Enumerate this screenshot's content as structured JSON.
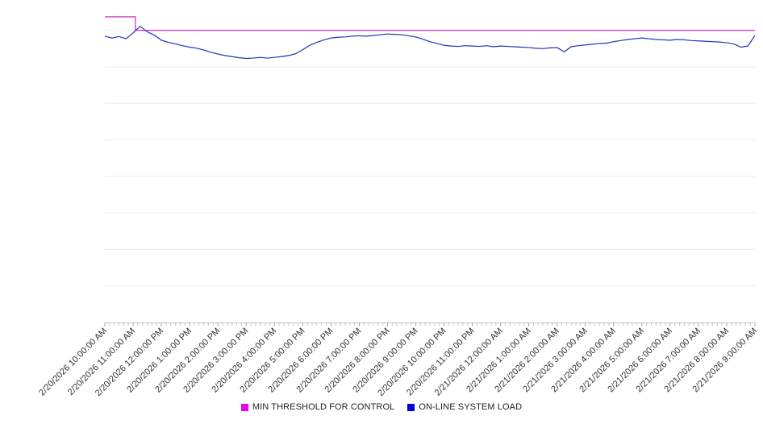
{
  "chart_data": {
    "type": "line",
    "title": "",
    "xlabel": "",
    "ylabel": "",
    "note": "y-axis is unlabeled in the source image; values estimated from gridlines (baseline = 0, one gridline = 10 units, threshold sits on top gridline = 80)",
    "ylim": [
      0,
      85
    ],
    "gridline_values": [
      10,
      20,
      30,
      40,
      50,
      60,
      70,
      80
    ],
    "grid": "horizontal-only",
    "legend_position": "bottom-center",
    "x_tick_interval_minutes": 60,
    "minor_tick_interval_minutes": 10,
    "categories": [
      "2/20/2026 10:00:00 AM",
      "2/20/2026 11:00:00 AM",
      "2/20/2026 12:00:00 PM",
      "2/20/2026 1:00:00 PM",
      "2/20/2026 2:00:00 PM",
      "2/20/2026 3:00:00 PM",
      "2/20/2026 4:00:00 PM",
      "2/20/2026 5:00:00 PM",
      "2/20/2026 6:00:00 PM",
      "2/20/2026 7:00:00 PM",
      "2/20/2026 8:00:00 PM",
      "2/20/2026 9:00:00 PM",
      "2/20/2026 10:00:00 PM",
      "2/20/2026 11:00:00 PM",
      "2/21/2026 12:00:00 AM",
      "2/21/2026 1:00:00 AM",
      "2/21/2026 2:00:00 AM",
      "2/21/2026 3:00:00 AM",
      "2/21/2026 4:00:00 AM",
      "2/21/2026 5:00:00 AM",
      "2/21/2026 6:00:00 AM",
      "2/21/2026 7:00:00 AM",
      "2/21/2026 8:00:00 AM",
      "2/21/2026 9:00:00 AM"
    ],
    "colors": {
      "gridline": "#ebebeb",
      "axis": "#c8c8c8",
      "tick_minor": "#c4c4c4",
      "tick_major": "#a8a8a8",
      "label": "#333333"
    },
    "series": [
      {
        "name": "MIN THRESHOLD FOR CONTROL",
        "type": "step-line",
        "color": "#cc33cc",
        "swatch_color": "#ee00ee",
        "points": [
          {
            "x_hours": 0,
            "y": 83.7
          },
          {
            "x_hours": 1.08,
            "y": 83.7
          },
          {
            "x_hours": 1.08,
            "y": 80.0
          },
          {
            "x_hours": 23,
            "y": 80.0
          }
        ]
      },
      {
        "name": "ON-LINE SYSTEM LOAD",
        "type": "line",
        "color": "#2233bb",
        "swatch_color": "#0000dd",
        "x_start_hours": 0,
        "sample_interval_minutes": 15,
        "values": [
          78.4,
          77.9,
          78.3,
          77.7,
          79.3,
          81.1,
          79.6,
          78.7,
          77.3,
          76.7,
          76.3,
          75.8,
          75.4,
          75.1,
          74.6,
          74.0,
          73.5,
          73.1,
          72.8,
          72.5,
          72.3,
          72.4,
          72.6,
          72.4,
          72.6,
          72.8,
          73.1,
          73.6,
          74.7,
          75.9,
          76.7,
          77.4,
          77.9,
          78.1,
          78.2,
          78.4,
          78.5,
          78.4,
          78.6,
          78.8,
          79.0,
          78.9,
          78.8,
          78.5,
          78.2,
          77.6,
          76.9,
          76.4,
          75.9,
          75.7,
          75.6,
          75.8,
          75.7,
          75.6,
          75.8,
          75.5,
          75.7,
          75.6,
          75.5,
          75.4,
          75.3,
          75.1,
          75.0,
          75.2,
          75.3,
          74.1,
          75.5,
          75.8,
          76.0,
          76.2,
          76.4,
          76.5,
          76.9,
          77.2,
          77.5,
          77.7,
          77.9,
          77.7,
          77.5,
          77.4,
          77.3,
          77.5,
          77.4,
          77.2,
          77.1,
          77.0,
          76.9,
          76.8,
          76.6,
          76.3,
          75.4,
          75.7,
          78.6
        ]
      }
    ]
  },
  "legend": {
    "items": [
      {
        "label": "MIN THRESHOLD FOR CONTROL"
      },
      {
        "label": "ON-LINE SYSTEM LOAD"
      }
    ]
  }
}
